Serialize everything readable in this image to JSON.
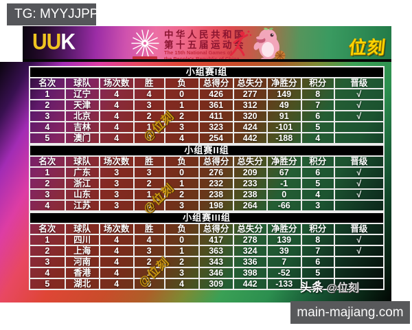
{
  "page": {
    "tg_label": "TG: MYYJJPP",
    "site_label": "main-majiang.com"
  },
  "header": {
    "left_logo_uu": "UU",
    "left_logo_k": "K",
    "emblem_icon": "starburst-games-emblem",
    "title_cn_line1": "中华人民共和国",
    "title_cn_line2": "第十五届运动会",
    "title_en_line1": "The 15th National Games of",
    "title_en_line2": "the People's Republic of China",
    "pictogram_icon": "red-athlete-pictogram",
    "mascot_icon": "pink-dolphin-mascot",
    "right_logo": "位刻"
  },
  "watermarks": {
    "diagonal_text": "@位刻",
    "toutiao_label": "头条",
    "toutiao_handle": "@位刻"
  },
  "colors": {
    "accent_yellow": "#ffd400",
    "watermark_gold": "#cf9a12",
    "maroon_title": "#8a1430",
    "red_title": "#c32a3e",
    "box_gray": "#58595b",
    "band_black": "#000000",
    "check_white": "#ffffff"
  },
  "chart_data": [
    {
      "type": "table",
      "title": "小组赛I组",
      "columns": [
        "名次",
        "球队",
        "场次数",
        "胜",
        "负",
        "总得分",
        "总失分",
        "净胜分",
        "积分",
        "晋级"
      ],
      "rows": [
        [
          "1",
          "辽宁",
          "4",
          "4",
          "0",
          "426",
          "277",
          "149",
          "8",
          "√"
        ],
        [
          "2",
          "天津",
          "4",
          "3",
          "1",
          "361",
          "312",
          "49",
          "7",
          "√"
        ],
        [
          "3",
          "北京",
          "4",
          "2",
          "2",
          "411",
          "320",
          "91",
          "6",
          "√"
        ],
        [
          "4",
          "吉林",
          "4",
          "1",
          "3",
          "323",
          "424",
          "-101",
          "5",
          ""
        ],
        [
          "5",
          "澳门",
          "4",
          "0",
          "4",
          "254",
          "442",
          "-188",
          "4",
          ""
        ]
      ]
    },
    {
      "type": "table",
      "title": "小组赛II组",
      "columns": [
        "名次",
        "球队",
        "场次数",
        "胜",
        "负",
        "总得分",
        "总失分",
        "净胜分",
        "积分",
        "晋级"
      ],
      "rows": [
        [
          "1",
          "广东",
          "3",
          "3",
          "0",
          "276",
          "209",
          "67",
          "6",
          "√"
        ],
        [
          "2",
          "浙江",
          "3",
          "2",
          "1",
          "232",
          "233",
          "-1",
          "5",
          "√"
        ],
        [
          "3",
          "山东",
          "3",
          "1",
          "2",
          "238",
          "238",
          "0",
          "4",
          "√"
        ],
        [
          "4",
          "江苏",
          "3",
          "0",
          "3",
          "198",
          "264",
          "-66",
          "3",
          ""
        ]
      ]
    },
    {
      "type": "table",
      "title": "小组赛III组",
      "columns": [
        "名次",
        "球队",
        "场次数",
        "胜",
        "负",
        "总得分",
        "总失分",
        "净胜分",
        "积分",
        "晋级"
      ],
      "rows": [
        [
          "1",
          "四川",
          "4",
          "4",
          "0",
          "417",
          "278",
          "139",
          "8",
          "√"
        ],
        [
          "2",
          "上海",
          "4",
          "3",
          "1",
          "363",
          "324",
          "39",
          "7",
          "√"
        ],
        [
          "3",
          "河南",
          "4",
          "2",
          "2",
          "343",
          "336",
          "7",
          "6",
          ""
        ],
        [
          "4",
          "香港",
          "4",
          "1",
          "3",
          "346",
          "398",
          "-52",
          "5",
          ""
        ],
        [
          "5",
          "湖北",
          "4",
          "0",
          "4",
          "309",
          "442",
          "-133",
          "4",
          ""
        ]
      ]
    }
  ]
}
